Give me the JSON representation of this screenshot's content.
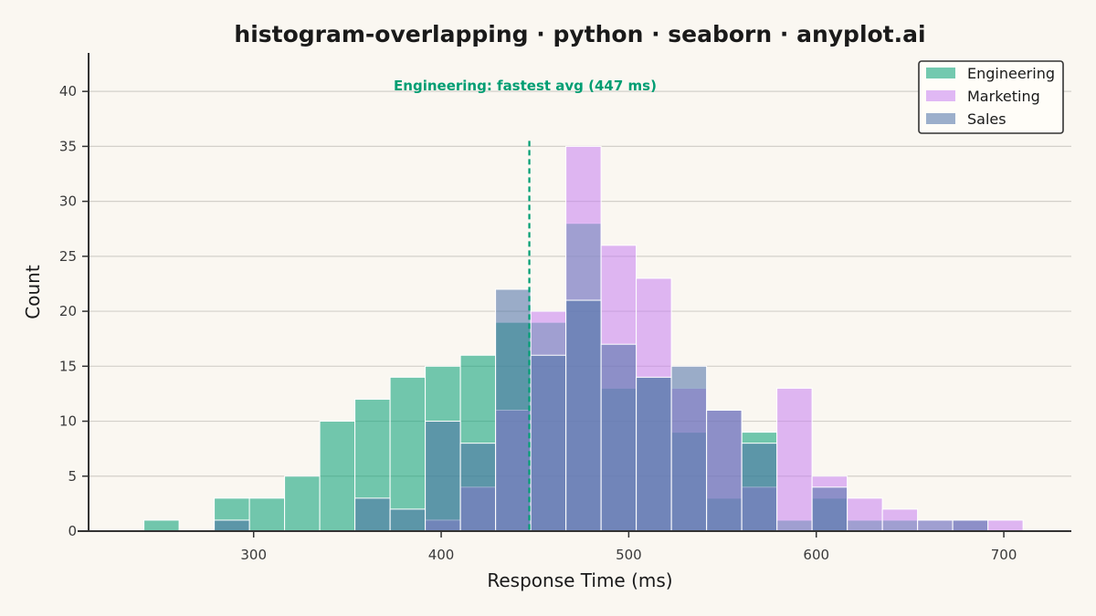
{
  "chart_data": {
    "type": "bar",
    "title": "histogram-overlapping · python · seaborn · anyplot.ai",
    "xlabel": "Response Time (ms)",
    "ylabel": "Count",
    "xlim": [
      212,
      736
    ],
    "ylim": [
      0,
      43.5
    ],
    "x_ticks": [
      300,
      400,
      500,
      600,
      700
    ],
    "y_ticks": [
      0,
      5,
      10,
      15,
      20,
      25,
      30,
      35,
      40
    ],
    "grid": "horizontal",
    "legend_position": "top-right",
    "bin_edges": [
      241.5,
      260.25,
      279.0,
      297.75,
      316.5,
      335.25,
      354.0,
      372.75,
      391.5,
      410.25,
      429.0,
      447.75,
      466.5,
      485.25,
      504.0,
      522.75,
      541.5,
      560.25,
      579.0,
      597.75,
      616.5,
      635.25,
      654.0,
      672.75,
      691.5,
      710.25
    ],
    "series": [
      {
        "name": "Engineering",
        "color": "#009E73",
        "opacity": 0.55,
        "values": [
          1,
          0,
          3,
          3,
          5,
          10,
          12,
          14,
          15,
          16,
          19,
          19,
          28,
          13,
          14,
          9,
          3,
          9,
          1,
          3,
          1,
          1,
          1,
          0,
          0
        ]
      },
      {
        "name": "Marketing",
        "color": "#C77FF0",
        "opacity": 0.55,
        "values": [
          0,
          0,
          0,
          0,
          0,
          0,
          0,
          0,
          1,
          4,
          11,
          20,
          35,
          26,
          23,
          13,
          11,
          4,
          13,
          5,
          3,
          2,
          1,
          1,
          1
        ]
      },
      {
        "name": "Sales",
        "color": "#4A6FA5",
        "opacity": 0.55,
        "values": [
          0,
          0,
          1,
          0,
          0,
          0,
          3,
          2,
          10,
          8,
          22,
          16,
          21,
          17,
          14,
          15,
          11,
          8,
          0,
          4,
          0,
          0,
          0,
          1,
          0
        ]
      }
    ],
    "annotation": {
      "text": "Engineering: fastest avg (447 ms)",
      "x": 447,
      "color": "#009E73",
      "line_y_top": 35.5
    }
  }
}
